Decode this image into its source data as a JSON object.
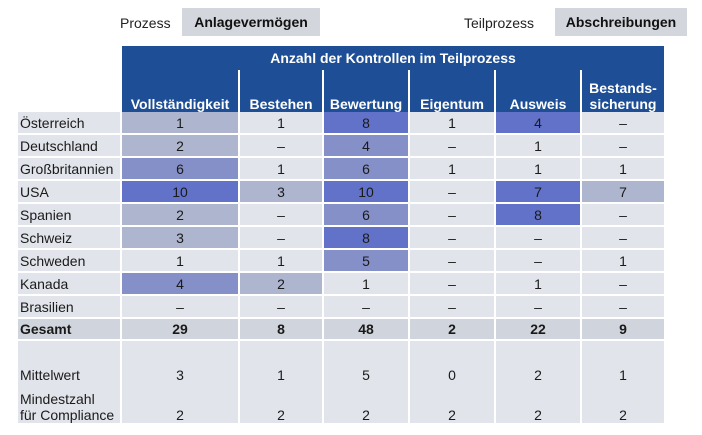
{
  "header": {
    "prozess_label": "Prozess",
    "prozess_value": "Anlagevermögen",
    "teilprozess_label": "Teilprozess",
    "teilprozess_value": "Abschreibungen"
  },
  "table": {
    "title": "Anzahl der Kontrollen im Teilprozess",
    "columns": [
      {
        "line1": "",
        "line2": "Vollständigkeit"
      },
      {
        "line1": "",
        "line2": "Bestehen"
      },
      {
        "line1": "",
        "line2": "Bewertung"
      },
      {
        "line1": "",
        "line2": "Eigentum"
      },
      {
        "line1": "",
        "line2": "Ausweis"
      },
      {
        "line1": "Bestands-",
        "line2": "sicherung"
      }
    ],
    "rows": [
      {
        "name": "Österreich",
        "values": [
          "1",
          "1",
          "8",
          "1",
          "4",
          "–"
        ],
        "shades": [
          1,
          0,
          3,
          0,
          3,
          0
        ]
      },
      {
        "name": "Deutschland",
        "values": [
          "2",
          "–",
          "4",
          "–",
          "1",
          "–"
        ],
        "shades": [
          1,
          0,
          2,
          0,
          0,
          0
        ]
      },
      {
        "name": "Großbritannien",
        "values": [
          "6",
          "1",
          "6",
          "1",
          "1",
          "1"
        ],
        "shades": [
          2,
          0,
          2,
          0,
          0,
          0
        ]
      },
      {
        "name": "USA",
        "values": [
          "10",
          "3",
          "10",
          "–",
          "7",
          "7"
        ],
        "shades": [
          3,
          1,
          3,
          0,
          3,
          1
        ]
      },
      {
        "name": "Spanien",
        "values": [
          "2",
          "–",
          "6",
          "–",
          "8",
          "–"
        ],
        "shades": [
          1,
          0,
          2,
          0,
          3,
          0
        ]
      },
      {
        "name": "Schweiz",
        "values": [
          "3",
          "–",
          "8",
          "–",
          "–",
          "–"
        ],
        "shades": [
          1,
          0,
          3,
          0,
          0,
          0
        ]
      },
      {
        "name": "Schweden",
        "values": [
          "1",
          "1",
          "5",
          "–",
          "–",
          "1"
        ],
        "shades": [
          0,
          0,
          2,
          0,
          0,
          0
        ]
      },
      {
        "name": "Kanada",
        "values": [
          "4",
          "2",
          "1",
          "–",
          "1",
          "–"
        ],
        "shades": [
          2,
          1,
          0,
          0,
          0,
          0
        ]
      },
      {
        "name": "Brasilien",
        "values": [
          "–",
          "–",
          "–",
          "–",
          "–",
          "–"
        ],
        "shades": [
          0,
          0,
          0,
          0,
          0,
          0
        ]
      }
    ],
    "total": {
      "name": "Gesamt",
      "values": [
        "29",
        "8",
        "48",
        "2",
        "22",
        "9"
      ]
    },
    "stats": {
      "mittelwert_label": "Mittelwert",
      "mittelwert": [
        "3",
        "1",
        "5",
        "0",
        "2",
        "1"
      ],
      "mindest_label_1": "Mindestzahl",
      "mindest_label_2": "für Compliance",
      "mindest": [
        "2",
        "2",
        "2",
        "2",
        "2",
        "2"
      ]
    }
  },
  "colors": {
    "header_blue": "#1e4f96",
    "shade_0": "#e1e4ea",
    "shade_1": "#aeb6cf",
    "shade_2": "#8590c8",
    "shade_3": "#6272c8"
  }
}
